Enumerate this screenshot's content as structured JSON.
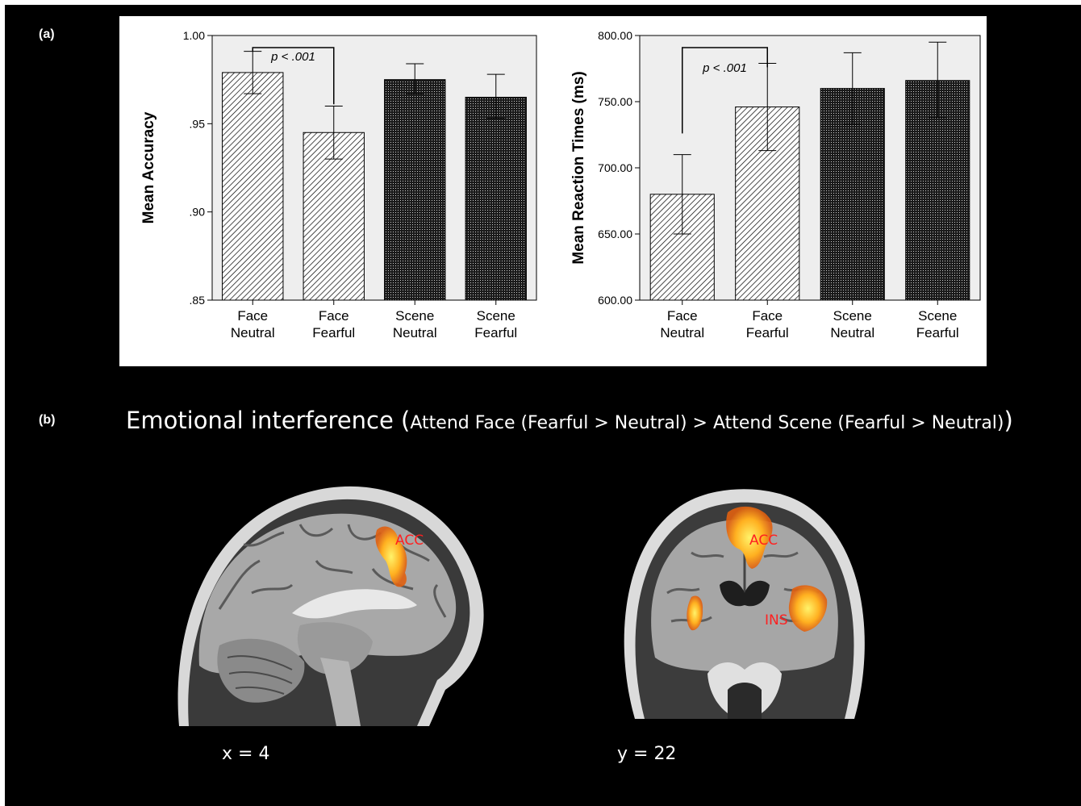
{
  "panel_a_label": "(a)",
  "panel_b_label": "(b)",
  "chart_data": [
    {
      "type": "bar",
      "categories": [
        [
          "Face",
          "Neutral"
        ],
        [
          "Face",
          "Fearful"
        ],
        [
          "Scene",
          "Neutral"
        ],
        [
          "Scene",
          "Fearful"
        ]
      ],
      "values": [
        0.979,
        0.945,
        0.975,
        0.965
      ],
      "error_low": [
        0.967,
        0.93,
        0.967,
        0.953
      ],
      "error_high": [
        0.991,
        0.96,
        0.984,
        0.978
      ],
      "ylabel": "Mean Accuracy",
      "ylim": [
        0.85,
        1.0
      ],
      "yticks": [
        0.85,
        0.9,
        0.95,
        1.0
      ],
      "ytick_labels": [
        ".85",
        ".90",
        ".95",
        "1.00"
      ],
      "annotation": {
        "text": "p < .001",
        "between": [
          0,
          1
        ]
      }
    },
    {
      "type": "bar",
      "categories": [
        [
          "Face",
          "Neutral"
        ],
        [
          "Face",
          "Fearful"
        ],
        [
          "Scene",
          "Neutral"
        ],
        [
          "Scene",
          "Fearful"
        ]
      ],
      "values": [
        680,
        746,
        760,
        766
      ],
      "error_low": [
        650,
        713,
        733,
        738
      ],
      "error_high": [
        710,
        779,
        787,
        795
      ],
      "ylabel": "Mean Reaction Times (ms)",
      "ylim": [
        600,
        800
      ],
      "yticks": [
        600,
        650,
        700,
        750,
        800
      ],
      "ytick_labels": [
        "600.00",
        "650.00",
        "700.00",
        "750.00",
        "800.00"
      ],
      "annotation": {
        "text": "p < .001",
        "between": [
          0,
          1
        ]
      }
    }
  ],
  "section_b": {
    "title_main": "Emotional interference (",
    "title_detail": "Attend Face (Fearful > Neutral) > Attend Scene (Fearful > Neutral)",
    "sagittal": {
      "coord": "x = 4",
      "regions": [
        "ACC"
      ]
    },
    "coronal": {
      "coord": "y = 22",
      "regions": [
        "ACC",
        "INS"
      ]
    }
  }
}
